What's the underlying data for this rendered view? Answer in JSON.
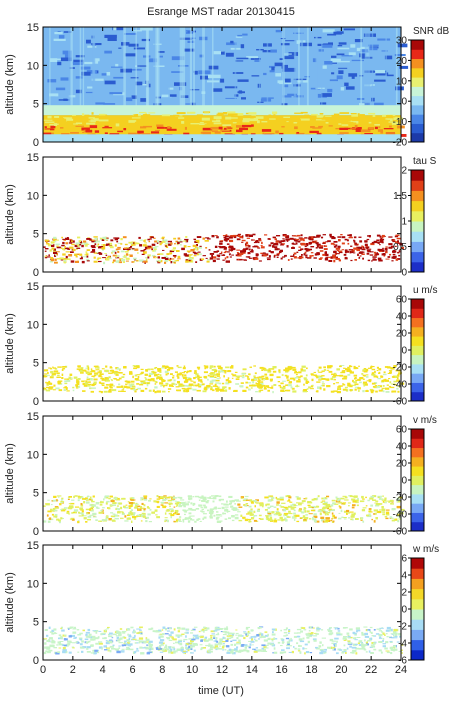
{
  "chart_data": {
    "type": "heatmap",
    "title": "Esrange MST radar 20130415",
    "xlabel": "time (UT)",
    "xlim": [
      0,
      24
    ],
    "xticks": [
      "0",
      "2",
      "4",
      "6",
      "8",
      "10",
      "12",
      "14",
      "16",
      "18",
      "20",
      "22",
      "24"
    ],
    "panels": [
      {
        "name": "snr",
        "ylabel": "altitude (km)",
        "ylim": [
          0,
          15
        ],
        "yticks": [
          "0",
          "5",
          "10",
          "15"
        ],
        "colorbar_label": "SNR dB",
        "clim": [
          -20,
          30
        ],
        "colorbar_ticks": [
          "30",
          "20",
          "10",
          "0",
          "-10",
          "-20"
        ],
        "description_regions": [
          {
            "z": "strong",
            "altitude_km": [
              1,
              2.5
            ],
            "time_ut": [
              0,
              24
            ]
          },
          {
            "z": "moderate",
            "altitude_km": [
              2.5,
              4.5
            ],
            "time_ut": [
              0,
              24
            ]
          },
          {
            "z": "low",
            "altitude_km": [
              5,
              15
            ],
            "time_ut": [
              0,
              24
            ]
          }
        ]
      },
      {
        "name": "tau",
        "ylabel": "altitude (km)",
        "ylim": [
          0,
          15
        ],
        "yticks": [
          "0",
          "5",
          "10",
          "15"
        ],
        "colorbar_label": "tau S",
        "clim": [
          0,
          2
        ],
        "colorbar_ticks": [
          "2",
          "1.5",
          "1",
          "0.5",
          "0"
        ],
        "description_regions": [
          {
            "z": "mixed 0.5-2",
            "altitude_km": [
              1,
              4.5
            ],
            "time_ut": [
              0,
              11
            ]
          },
          {
            "z": "high ~2",
            "altitude_km": [
              1.5,
              5
            ],
            "time_ut": [
              11,
              24
            ]
          }
        ]
      },
      {
        "name": "u",
        "ylabel": "altitude (km)",
        "ylim": [
          0,
          15
        ],
        "yticks": [
          "0",
          "5",
          "10",
          "15"
        ],
        "colorbar_label": "u m/s",
        "clim": [
          -60,
          60
        ],
        "colorbar_ticks": [
          "60",
          "40",
          "20",
          "0",
          "-20",
          "-40",
          "-60"
        ],
        "description_regions": [
          {
            "z": "~10",
            "altitude_km": [
              1.5,
              5
            ],
            "time_ut": [
              0,
              24
            ]
          }
        ]
      },
      {
        "name": "v",
        "ylabel": "altitude (km)",
        "ylim": [
          0,
          15
        ],
        "yticks": [
          "0",
          "5",
          "10",
          "15"
        ],
        "colorbar_label": "v m/s",
        "clim": [
          -60,
          60
        ],
        "colorbar_ticks": [
          "60",
          "40",
          "20",
          "0",
          "-20",
          "-40",
          "-60"
        ],
        "description_regions": [
          {
            "z": "~5-15",
            "altitude_km": [
              1.5,
              5
            ],
            "time_ut": [
              0,
              24
            ]
          }
        ]
      },
      {
        "name": "w",
        "ylabel": "altitude (km)",
        "ylim": [
          0,
          15
        ],
        "yticks": [
          "0",
          "5",
          "10",
          "15"
        ],
        "colorbar_label": "w m/s",
        "clim": [
          -6,
          6
        ],
        "colorbar_ticks": [
          "6",
          "4",
          "2",
          "0",
          "-2",
          "-4",
          "-6"
        ],
        "description_regions": [
          {
            "z": "~0",
            "altitude_km": [
              1,
              4.5
            ],
            "time_ut": [
              0,
              24
            ]
          }
        ]
      }
    ]
  }
}
